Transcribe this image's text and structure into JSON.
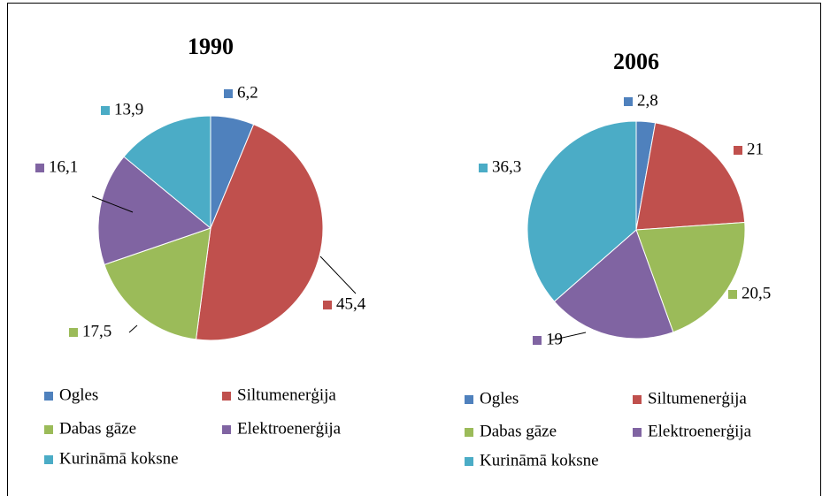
{
  "chart_data": [
    {
      "type": "pie",
      "title": "1990",
      "categories": [
        "Ogles",
        "Siltumenerģija",
        "Dabas gāze",
        "Elektroenerģija",
        "Kurināmā koksne"
      ],
      "values": [
        6.2,
        45.4,
        17.5,
        16.1,
        13.9
      ],
      "value_labels": [
        "6,2",
        "45,4",
        "17,5",
        "16,1",
        "13,9"
      ],
      "colors": [
        "#4f81bd",
        "#c0504d",
        "#9bbb59",
        "#8064a2",
        "#4bacc6"
      ]
    },
    {
      "type": "pie",
      "title": "2006",
      "categories": [
        "Ogles",
        "Siltumenerģija",
        "Dabas gāze",
        "Elektroenerģija",
        "Kurināmā koksne"
      ],
      "values": [
        2.8,
        21,
        20.5,
        19,
        36.3
      ],
      "value_labels": [
        "2,8",
        "21",
        "20,5",
        "19",
        "36,3"
      ],
      "colors": [
        "#4f81bd",
        "#c0504d",
        "#9bbb59",
        "#8064a2",
        "#4bacc6"
      ]
    }
  ]
}
